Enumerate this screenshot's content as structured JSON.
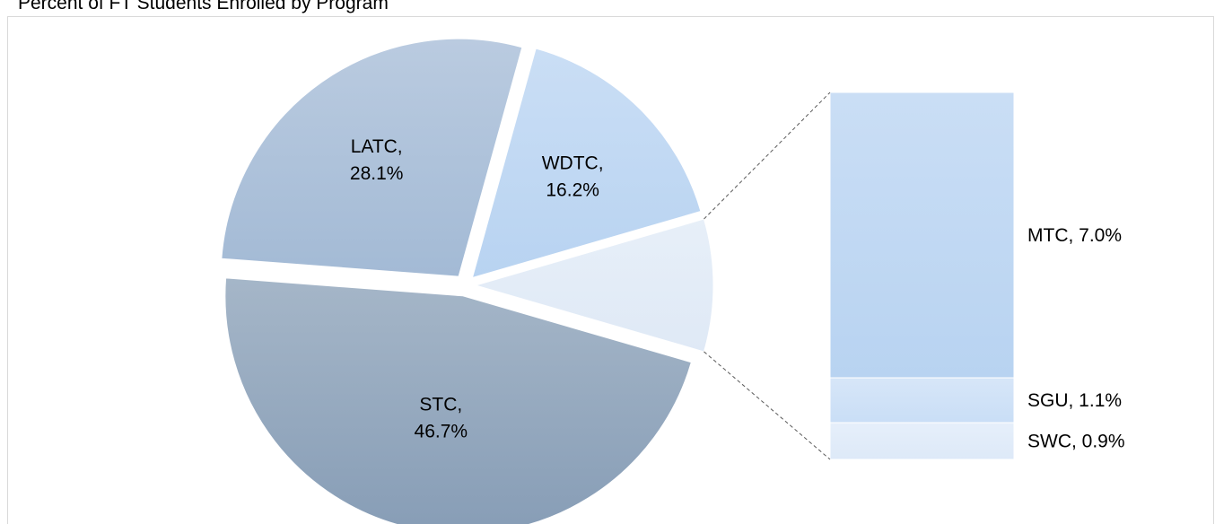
{
  "chart_data": {
    "type": "pie_of_bar",
    "title": "Percent of FT Students Enrolled by Program",
    "categories": [
      "STC",
      "LATC",
      "WDTC"
    ],
    "values": [
      46.7,
      28.1,
      16.2
    ],
    "value_labels": [
      "STC, 46.7%",
      "LATC, 28.1%",
      "WDTC, 16.2%"
    ],
    "colors": [
      "#879db6",
      "#a3bad5",
      "#b8d3f1"
    ],
    "bar": {
      "categories": [
        "MTC",
        "SGU",
        "SWC"
      ],
      "values": [
        7.0,
        1.1,
        0.9
      ],
      "value_labels": [
        "MTC, 7.0%",
        "SGU, 1.1%",
        "SWC, 0.9%"
      ],
      "colors": [
        "#b8d3f1",
        "#c9def6",
        "#dde9f8"
      ]
    }
  }
}
